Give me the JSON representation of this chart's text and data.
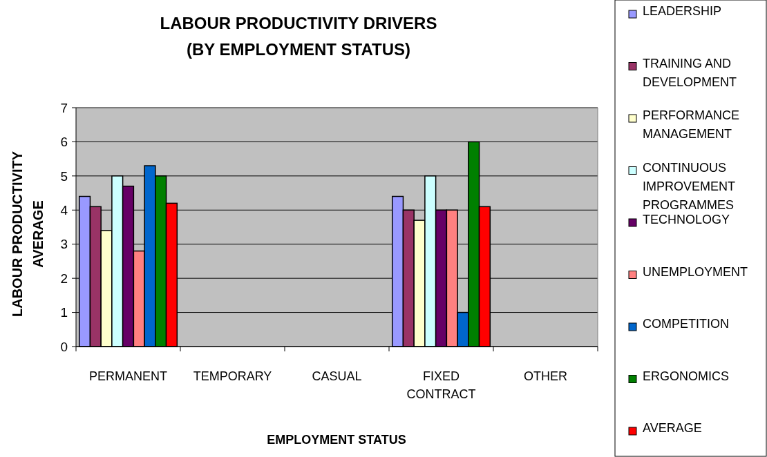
{
  "chart_data": {
    "type": "bar",
    "title": "LABOUR PRODUCTIVITY DRIVERS\n(BY EMPLOYMENT STATUS)",
    "xlabel": "EMPLOYMENT STATUS",
    "ylabel": "LABOUR PRODUCTIVITY AVERAGE",
    "categories": [
      "PERMANENT",
      "TEMPORARY",
      "CASUAL",
      "FIXED CONTRACT",
      "OTHER"
    ],
    "series": [
      {
        "name": "LEADERSHIP",
        "color": "#9999ff",
        "values": [
          4.4,
          null,
          null,
          4.4,
          null
        ]
      },
      {
        "name": "TRAINING AND DEVELOPMENT",
        "color": "#993366",
        "values": [
          4.1,
          null,
          null,
          4.0,
          null
        ]
      },
      {
        "name": "PERFORMANCE MANAGEMENT",
        "color": "#ffffcc",
        "values": [
          3.4,
          null,
          null,
          3.7,
          null
        ]
      },
      {
        "name": "CONTINUOUS IMPROVEMENT PROGRAMMES",
        "color": "#ccffff",
        "values": [
          5.0,
          null,
          null,
          5.0,
          null
        ]
      },
      {
        "name": "TECHNOLOGY",
        "color": "#660066",
        "values": [
          4.7,
          null,
          null,
          4.0,
          null
        ]
      },
      {
        "name": "UNEMPLOYMENT",
        "color": "#ff8080",
        "values": [
          2.8,
          null,
          null,
          4.0,
          null
        ]
      },
      {
        "name": "COMPETITION",
        "color": "#0066cc",
        "values": [
          5.3,
          null,
          null,
          1.0,
          null
        ]
      },
      {
        "name": "ERGONOMICS",
        "color": "#008000",
        "values": [
          5.0,
          null,
          null,
          6.0,
          null
        ]
      },
      {
        "name": "AVERAGE",
        "color": "#ff0000",
        "values": [
          4.2,
          null,
          null,
          4.1,
          null
        ]
      }
    ],
    "ylim": [
      0,
      7
    ],
    "yticks": [
      0,
      1,
      2,
      3,
      4,
      5,
      6,
      7
    ],
    "grid": "y",
    "legend": "right"
  }
}
